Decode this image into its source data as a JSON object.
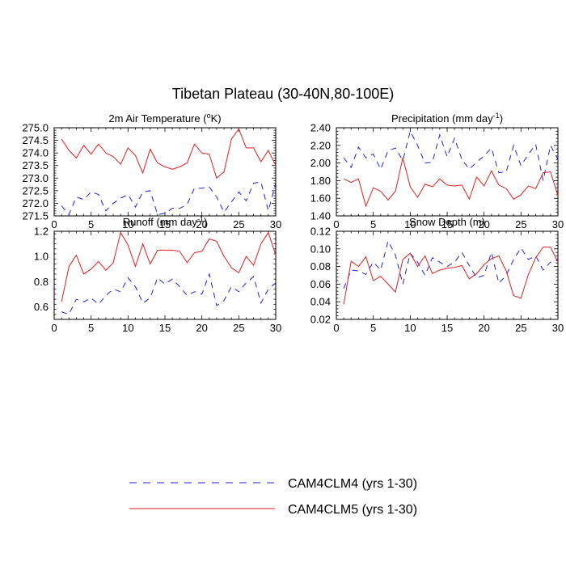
{
  "figure": {
    "title": "Tibetan Plateau (30-40N,80-100E)"
  },
  "legend": [
    {
      "label": "CAM4CLM4 (yrs 1-30)",
      "color": "#1f1fe0",
      "dash": "dashed"
    },
    {
      "label": "CAM4CLM5 (yrs 1-30)",
      "color": "#e01f1f",
      "dash": "solid"
    }
  ],
  "chart_data": [
    {
      "type": "line",
      "title": "2m Air Temperature (°K)",
      "title_parts": [
        "2m Air Temperature (",
        "o",
        "K)"
      ],
      "xlim": [
        0,
        30
      ],
      "ylim": [
        271.5,
        275.0
      ],
      "xticks": [
        0,
        5,
        10,
        15,
        20,
        25,
        30
      ],
      "yticks": [
        271.5,
        272.0,
        272.5,
        273.0,
        273.5,
        274.0,
        274.5,
        275.0
      ],
      "ytick_labels": [
        "271.5",
        "272.0",
        "272.5",
        "273.0",
        "273.5",
        "274.0",
        "274.5",
        "275.0"
      ],
      "x": [
        1,
        2,
        3,
        4,
        5,
        6,
        7,
        8,
        9,
        10,
        11,
        12,
        13,
        14,
        15,
        16,
        17,
        18,
        19,
        20,
        21,
        22,
        23,
        24,
        25,
        26,
        27,
        28,
        29,
        30
      ],
      "series": [
        {
          "name": "CAM4CLM4 (yrs 1-30)",
          "values": [
            271.9,
            271.55,
            272.25,
            272.15,
            272.45,
            272.35,
            271.7,
            272.0,
            272.2,
            272.35,
            271.85,
            272.45,
            272.5,
            271.55,
            271.6,
            271.8,
            271.8,
            271.95,
            272.6,
            272.6,
            272.65,
            272.25,
            271.65,
            272.05,
            272.45,
            272.1,
            272.8,
            272.85,
            271.7,
            272.8
          ]
        },
        {
          "name": "CAM4CLM5 (yrs 1-30)",
          "values": [
            274.55,
            274.1,
            273.8,
            274.3,
            273.95,
            274.35,
            274.0,
            273.85,
            273.55,
            274.2,
            273.9,
            273.2,
            274.15,
            273.6,
            273.45,
            273.35,
            273.45,
            273.6,
            274.35,
            274.0,
            273.95,
            273.0,
            273.25,
            274.55,
            274.95,
            274.2,
            274.2,
            273.65,
            274.1,
            273.5
          ]
        }
      ]
    },
    {
      "type": "line",
      "title": "Precipitation (mm day-1)",
      "title_parts": [
        "Precipitation (mm day",
        "-1",
        ")"
      ],
      "xlim": [
        0,
        30
      ],
      "ylim": [
        1.4,
        2.4
      ],
      "xticks": [
        0,
        5,
        10,
        15,
        20,
        25,
        30
      ],
      "yticks": [
        1.4,
        1.6,
        1.8,
        2.0,
        2.2,
        2.4
      ],
      "ytick_labels": [
        "1.40",
        "1.60",
        "1.80",
        "2.00",
        "2.20",
        "2.40"
      ],
      "x": [
        1,
        2,
        3,
        4,
        5,
        6,
        7,
        8,
        9,
        10,
        11,
        12,
        13,
        14,
        15,
        16,
        17,
        18,
        19,
        20,
        21,
        22,
        23,
        24,
        25,
        26,
        27,
        28,
        29,
        30
      ],
      "series": [
        {
          "name": "CAM4CLM4 (yrs 1-30)",
          "values": [
            2.06,
            1.95,
            2.18,
            2.06,
            2.1,
            1.93,
            2.14,
            2.17,
            2.03,
            2.36,
            2.2,
            2.0,
            2.01,
            2.32,
            2.07,
            2.28,
            2.04,
            1.93,
            2.01,
            2.08,
            2.17,
            1.89,
            1.9,
            2.2,
            1.97,
            2.1,
            2.21,
            1.8,
            2.2,
            2.04
          ]
        },
        {
          "name": "CAM4CLM5 (yrs 1-30)",
          "values": [
            1.82,
            1.78,
            1.82,
            1.51,
            1.72,
            1.68,
            1.58,
            1.68,
            2.06,
            1.73,
            1.61,
            1.76,
            1.73,
            1.82,
            1.75,
            1.74,
            1.75,
            1.59,
            1.84,
            1.74,
            1.91,
            1.75,
            1.71,
            1.59,
            1.64,
            1.74,
            1.71,
            1.89,
            1.9,
            1.63
          ]
        }
      ]
    },
    {
      "type": "line",
      "title": "Runoff (mm day-1)",
      "title_parts": [
        "Runoff (mm day",
        "-1",
        ")"
      ],
      "xlim": [
        0,
        30
      ],
      "ylim": [
        0.5,
        1.2
      ],
      "xticks": [
        0,
        5,
        10,
        15,
        20,
        25,
        30
      ],
      "yticks": [
        0.6,
        0.8,
        1.0,
        1.2
      ],
      "ytick_labels": [
        "0.6",
        "0.8",
        "1.0",
        "1.2"
      ],
      "x": [
        1,
        2,
        3,
        4,
        5,
        6,
        7,
        8,
        9,
        10,
        11,
        12,
        13,
        14,
        15,
        16,
        17,
        18,
        19,
        20,
        21,
        22,
        23,
        24,
        25,
        26,
        27,
        28,
        29,
        30
      ],
      "series": [
        {
          "name": "CAM4CLM4 (yrs 1-30)",
          "values": [
            0.56,
            0.54,
            0.66,
            0.64,
            0.67,
            0.62,
            0.69,
            0.74,
            0.72,
            0.83,
            0.76,
            0.63,
            0.67,
            0.83,
            0.78,
            0.82,
            0.76,
            0.69,
            0.72,
            0.7,
            0.86,
            0.61,
            0.65,
            0.76,
            0.72,
            0.79,
            0.84,
            0.63,
            0.74,
            0.79
          ]
        },
        {
          "name": "CAM4CLM5 (yrs 1-30)",
          "values": [
            0.64,
            0.92,
            1.01,
            0.86,
            0.9,
            0.96,
            0.89,
            0.95,
            1.19,
            1.09,
            0.92,
            1.1,
            0.94,
            1.05,
            1.05,
            1.05,
            1.04,
            0.95,
            1.03,
            1.04,
            1.14,
            1.12,
            1.0,
            0.91,
            0.87,
            1.0,
            0.93,
            1.1,
            1.19,
            1.01
          ]
        }
      ]
    },
    {
      "type": "line",
      "title": "Snow Depth (m)",
      "title_parts": [
        "Snow Depth (m)",
        "",
        ""
      ],
      "xlim": [
        0,
        30
      ],
      "ylim": [
        0.02,
        0.12
      ],
      "xticks": [
        0,
        5,
        10,
        15,
        20,
        25,
        30
      ],
      "yticks": [
        0.02,
        0.04,
        0.06,
        0.08,
        0.1,
        0.12
      ],
      "ytick_labels": [
        "0.02",
        "0.04",
        "0.06",
        "0.08",
        "0.10",
        "0.12"
      ],
      "x": [
        1,
        2,
        3,
        4,
        5,
        6,
        7,
        8,
        9,
        10,
        11,
        12,
        13,
        14,
        15,
        16,
        17,
        18,
        19,
        20,
        21,
        22,
        23,
        24,
        25,
        26,
        27,
        28,
        29,
        30
      ],
      "series": [
        {
          "name": "CAM4CLM4 (yrs 1-30)",
          "values": [
            0.055,
            0.076,
            0.075,
            0.071,
            0.085,
            0.076,
            0.109,
            0.093,
            0.06,
            0.095,
            0.085,
            0.07,
            0.09,
            0.085,
            0.08,
            0.085,
            0.096,
            0.081,
            0.067,
            0.07,
            0.096,
            0.061,
            0.07,
            0.088,
            0.101,
            0.088,
            0.092,
            0.076,
            0.085,
            0.087
          ]
        },
        {
          "name": "CAM4CLM5 (yrs 1-30)",
          "values": [
            0.037,
            0.086,
            0.08,
            0.091,
            0.064,
            0.069,
            0.06,
            0.051,
            0.088,
            0.095,
            0.08,
            0.092,
            0.072,
            0.076,
            0.078,
            0.079,
            0.081,
            0.066,
            0.072,
            0.082,
            0.089,
            0.092,
            0.075,
            0.047,
            0.044,
            0.071,
            0.09,
            0.102,
            0.102,
            0.085
          ]
        }
      ]
    }
  ]
}
